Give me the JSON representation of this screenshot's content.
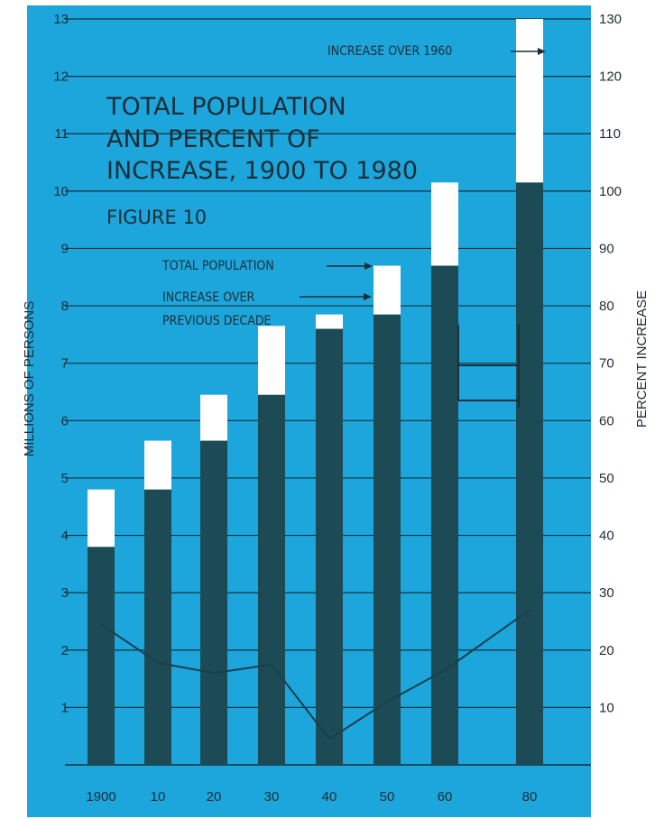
{
  "chart_data": {
    "type": "bar",
    "title_lines": [
      "TOTAL POPULATION",
      "AND PERCENT OF",
      "INCREASE, 1900 TO 1980"
    ],
    "subtitle": "FIGURE 10",
    "ylabel": "MILLIONS OF PERSONS",
    "y2label": "PERCENT INCREASE",
    "ylim": [
      0,
      13
    ],
    "y2lim": [
      0,
      130
    ],
    "yticks": [
      "1",
      "2",
      "3",
      "4",
      "5",
      "6",
      "7",
      "8",
      "9",
      "10",
      "11",
      "12",
      "13"
    ],
    "y2ticks": [
      "10",
      "20",
      "30",
      "40",
      "50",
      "60",
      "70",
      "80",
      "90",
      "100",
      "110",
      "120",
      "130"
    ],
    "categories": [
      "1900",
      "10",
      "20",
      "30",
      "40",
      "50",
      "60",
      "80"
    ],
    "series": [
      {
        "name": "TOTAL POPULATION",
        "values": [
          4.8,
          5.65,
          6.45,
          7.65,
          7.85,
          8.7,
          10.15,
          13.0
        ]
      },
      {
        "name": "INCREASE OVER PREVIOUS DECADE",
        "values": [
          1.0,
          0.85,
          0.8,
          1.2,
          0.25,
          0.85,
          1.45,
          2.85
        ]
      }
    ],
    "percent_increase": [
      24.5,
      17.8,
      16.0,
      17.5,
      4.5,
      11.0,
      16.5,
      27.0
    ],
    "annotations": {
      "total": "TOTAL POPULATION",
      "increase_line1": "INCREASE OVER",
      "increase_line2": "PREVIOUS DECADE",
      "over1960": "INCREASE OVER 1960"
    },
    "grid": true,
    "colors": {
      "background": "#1ca6dc",
      "bar": "#1c4a55",
      "increase": "#ffffff",
      "line": "#1a3f4c",
      "gridline": "#17303c"
    }
  }
}
